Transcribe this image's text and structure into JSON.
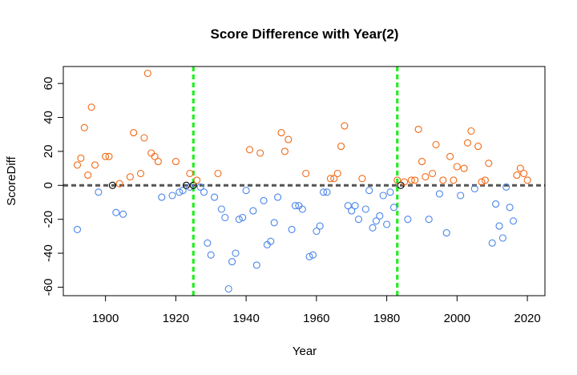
{
  "chart_data": {
    "type": "scatter",
    "title": "Score Difference with Year(2)",
    "xlabel": "Year",
    "ylabel": "ScoreDiff",
    "xlim": [
      1888,
      2025
    ],
    "ylim": [
      -65,
      70
    ],
    "x_ticks": [
      1900,
      1920,
      1940,
      1960,
      1980,
      2000,
      2020
    ],
    "y_ticks": [
      -60,
      -40,
      -20,
      0,
      20,
      40,
      60
    ],
    "reference_lines": [
      {
        "orientation": "horizontal",
        "value": 0,
        "color": "#595959",
        "style": "dashed"
      },
      {
        "orientation": "vertical",
        "value": 1925,
        "color": "#22ee22",
        "style": "dashed"
      },
      {
        "orientation": "vertical",
        "value": 1983,
        "color": "#22ee22",
        "style": "dashed"
      }
    ],
    "colors": {
      "positive": "#f26a16",
      "negative": "#4a86e8",
      "zero": "#000000"
    },
    "points": [
      {
        "x": 1892,
        "y": 12
      },
      {
        "x": 1892,
        "y": -26
      },
      {
        "x": 1893,
        "y": 16
      },
      {
        "x": 1894,
        "y": 34
      },
      {
        "x": 1895,
        "y": 6
      },
      {
        "x": 1896,
        "y": 46
      },
      {
        "x": 1897,
        "y": 12
      },
      {
        "x": 1898,
        "y": -4
      },
      {
        "x": 1900,
        "y": 17
      },
      {
        "x": 1901,
        "y": 17
      },
      {
        "x": 1902,
        "y": 0
      },
      {
        "x": 1903,
        "y": -16
      },
      {
        "x": 1904,
        "y": 1
      },
      {
        "x": 1905,
        "y": -17
      },
      {
        "x": 1907,
        "y": 5
      },
      {
        "x": 1908,
        "y": 31
      },
      {
        "x": 1910,
        "y": 7
      },
      {
        "x": 1911,
        "y": 28
      },
      {
        "x": 1912,
        "y": 66
      },
      {
        "x": 1913,
        "y": 19
      },
      {
        "x": 1914,
        "y": 17
      },
      {
        "x": 1915,
        "y": 14
      },
      {
        "x": 1916,
        "y": -7
      },
      {
        "x": 1919,
        "y": -6
      },
      {
        "x": 1920,
        "y": 14
      },
      {
        "x": 1921,
        "y": -4
      },
      {
        "x": 1922,
        "y": -3
      },
      {
        "x": 1923,
        "y": 0
      },
      {
        "x": 1924,
        "y": 7
      },
      {
        "x": 1924,
        "y": -1
      },
      {
        "x": 1925,
        "y": 0
      },
      {
        "x": 1926,
        "y": 3
      },
      {
        "x": 1927,
        "y": -1
      },
      {
        "x": 1928,
        "y": -4
      },
      {
        "x": 1929,
        "y": -34
      },
      {
        "x": 1930,
        "y": -41
      },
      {
        "x": 1931,
        "y": -7
      },
      {
        "x": 1932,
        "y": 7
      },
      {
        "x": 1933,
        "y": -14
      },
      {
        "x": 1934,
        "y": -19
      },
      {
        "x": 1935,
        "y": -61
      },
      {
        "x": 1936,
        "y": -45
      },
      {
        "x": 1937,
        "y": -40
      },
      {
        "x": 1938,
        "y": -20
      },
      {
        "x": 1939,
        "y": -19
      },
      {
        "x": 1940,
        "y": -3
      },
      {
        "x": 1941,
        "y": 21
      },
      {
        "x": 1942,
        "y": -15
      },
      {
        "x": 1943,
        "y": -47
      },
      {
        "x": 1944,
        "y": 19
      },
      {
        "x": 1945,
        "y": -9
      },
      {
        "x": 1946,
        "y": -35
      },
      {
        "x": 1947,
        "y": -33
      },
      {
        "x": 1948,
        "y": -22
      },
      {
        "x": 1949,
        "y": -7
      },
      {
        "x": 1950,
        "y": 31
      },
      {
        "x": 1951,
        "y": 20
      },
      {
        "x": 1952,
        "y": 27
      },
      {
        "x": 1953,
        "y": -26
      },
      {
        "x": 1954,
        "y": -12
      },
      {
        "x": 1955,
        "y": -12
      },
      {
        "x": 1956,
        "y": -14
      },
      {
        "x": 1957,
        "y": 7
      },
      {
        "x": 1958,
        "y": -42
      },
      {
        "x": 1959,
        "y": -41
      },
      {
        "x": 1960,
        "y": -27
      },
      {
        "x": 1961,
        "y": -24
      },
      {
        "x": 1962,
        "y": -4
      },
      {
        "x": 1963,
        "y": -4
      },
      {
        "x": 1964,
        "y": 4
      },
      {
        "x": 1965,
        "y": 4
      },
      {
        "x": 1966,
        "y": 7
      },
      {
        "x": 1967,
        "y": 23
      },
      {
        "x": 1968,
        "y": 35
      },
      {
        "x": 1969,
        "y": -12
      },
      {
        "x": 1970,
        "y": -15
      },
      {
        "x": 1971,
        "y": -12
      },
      {
        "x": 1972,
        "y": -20
      },
      {
        "x": 1973,
        "y": 4
      },
      {
        "x": 1974,
        "y": -14
      },
      {
        "x": 1975,
        "y": -3
      },
      {
        "x": 1976,
        "y": -25
      },
      {
        "x": 1977,
        "y": -21
      },
      {
        "x": 1978,
        "y": -18
      },
      {
        "x": 1979,
        "y": -6
      },
      {
        "x": 1980,
        "y": -23
      },
      {
        "x": 1981,
        "y": -4
      },
      {
        "x": 1982,
        "y": -13
      },
      {
        "x": 1983,
        "y": 3
      },
      {
        "x": 1984,
        "y": 0
      },
      {
        "x": 1985,
        "y": 2
      },
      {
        "x": 1986,
        "y": -20
      },
      {
        "x": 1987,
        "y": 3
      },
      {
        "x": 1988,
        "y": 3
      },
      {
        "x": 1989,
        "y": 33
      },
      {
        "x": 1990,
        "y": 14
      },
      {
        "x": 1991,
        "y": 5
      },
      {
        "x": 1992,
        "y": -20
      },
      {
        "x": 1993,
        "y": 7
      },
      {
        "x": 1994,
        "y": 24
      },
      {
        "x": 1995,
        "y": -5
      },
      {
        "x": 1996,
        "y": 3
      },
      {
        "x": 1997,
        "y": -28
      },
      {
        "x": 1998,
        "y": 17
      },
      {
        "x": 1999,
        "y": 3
      },
      {
        "x": 2000,
        "y": 11
      },
      {
        "x": 2001,
        "y": -6
      },
      {
        "x": 2002,
        "y": 10
      },
      {
        "x": 2003,
        "y": 25
      },
      {
        "x": 2004,
        "y": 32
      },
      {
        "x": 2005,
        "y": -2
      },
      {
        "x": 2006,
        "y": 23
      },
      {
        "x": 2007,
        "y": 2
      },
      {
        "x": 2008,
        "y": 3
      },
      {
        "x": 2009,
        "y": 13
      },
      {
        "x": 2010,
        "y": -34
      },
      {
        "x": 2011,
        "y": -11
      },
      {
        "x": 2012,
        "y": -24
      },
      {
        "x": 2013,
        "y": -31
      },
      {
        "x": 2014,
        "y": -1
      },
      {
        "x": 2015,
        "y": -13
      },
      {
        "x": 2016,
        "y": -21
      },
      {
        "x": 2017,
        "y": 6
      },
      {
        "x": 2018,
        "y": 10
      },
      {
        "x": 2019,
        "y": 7
      },
      {
        "x": 2020,
        "y": 3
      }
    ]
  }
}
